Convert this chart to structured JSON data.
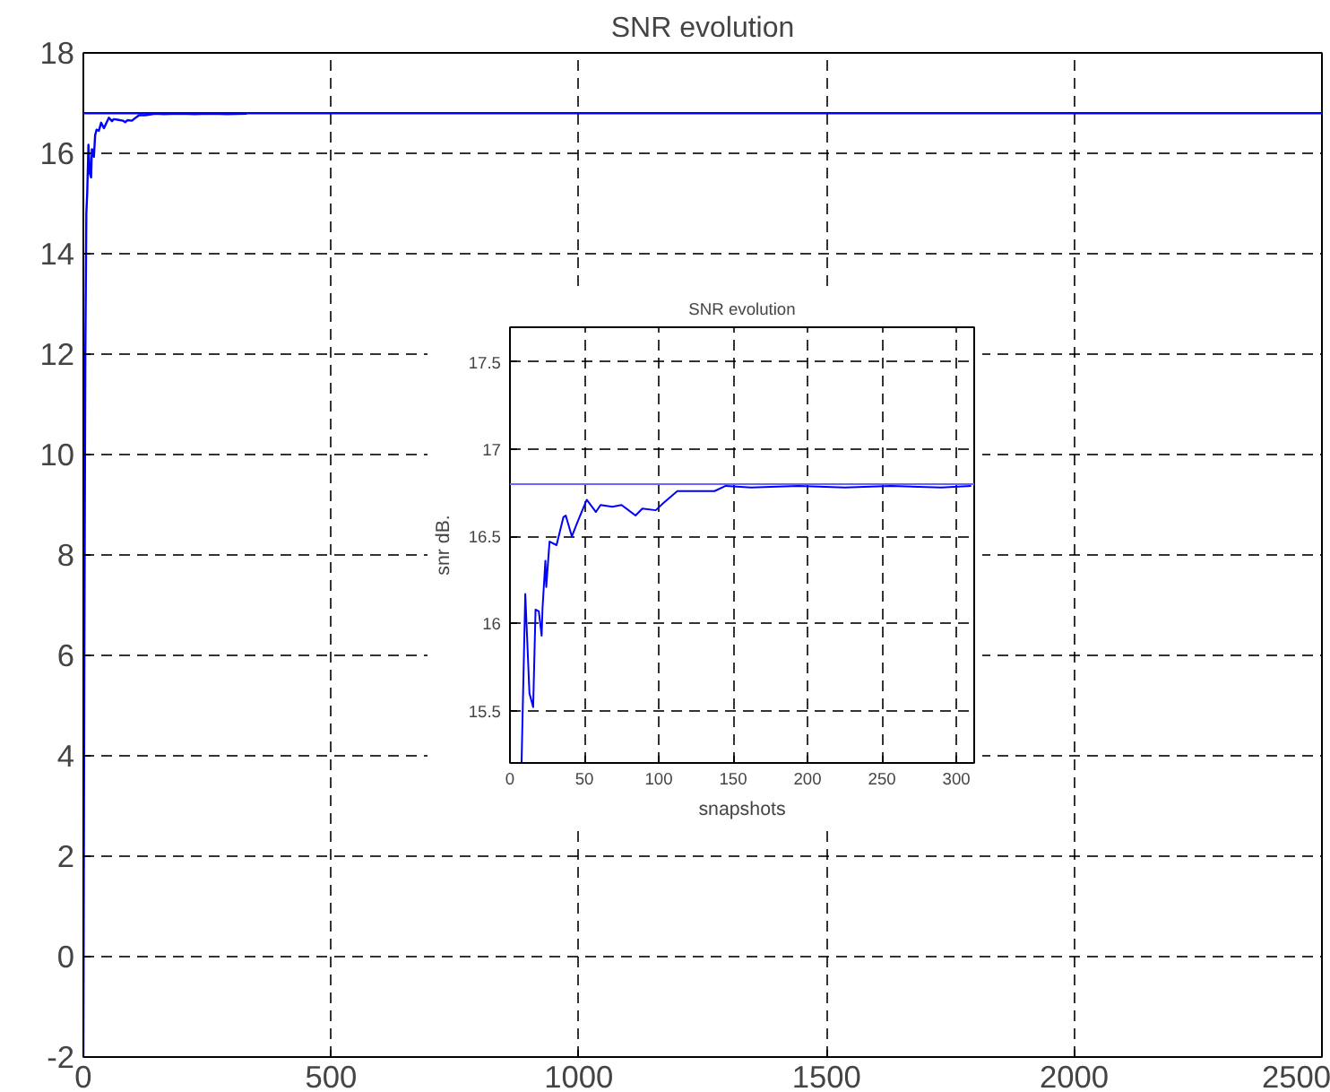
{
  "chart_data": [
    {
      "type": "line",
      "title": "SNR evolution",
      "xlim": [
        0,
        2500
      ],
      "ylim": [
        -2,
        18
      ],
      "xticks": [
        0,
        500,
        1000,
        1500,
        2000,
        2500
      ],
      "yticks": [
        -2,
        0,
        2,
        4,
        6,
        8,
        10,
        12,
        14,
        16,
        18
      ],
      "grid": true,
      "line_style": "solid",
      "series": [
        {
          "color": "#0000ff",
          "x": [
            0,
            2,
            4,
            6,
            7.8,
            10.3,
            13.1,
            15.6,
            17.2,
            19.4,
            21.3,
            23.8,
            26.6,
            31.3,
            35.9,
            41.6,
            45.3,
            51.6,
            57.8,
            60.9,
            68.8,
            79.7,
            84.4,
            89,
            98,
            103,
            112.5,
            125,
            145,
            162,
            194,
            225,
            256,
            290,
            330
          ],
          "values": [
            -2,
            6,
            12,
            14.8,
            15.2,
            16.17,
            15.6,
            15.52,
            16.08,
            16.07,
            15.93,
            16.36,
            16.47,
            16.45,
            16.61,
            16.5,
            16.58,
            16.71,
            16.64,
            16.68,
            16.67,
            16.65,
            16.62,
            16.66,
            16.65,
            16.69,
            16.76,
            16.76,
            16.79,
            16.78,
            16.79,
            16.78,
            16.79,
            16.78,
            16.79
          ]
        }
      ],
      "ref_lines": [
        {
          "axis": "y",
          "value": 16.8,
          "color": "#0000ff"
        }
      ]
    },
    {
      "type": "line",
      "title": "SNR evolution",
      "xlabel": "snapshots",
      "ylabel": "snr dB.",
      "xlim": [
        0,
        312
      ],
      "ylim": [
        15.2,
        17.7
      ],
      "xticks": [
        0,
        50,
        100,
        150,
        200,
        250,
        300
      ],
      "yticks": [
        15.5,
        16,
        16.5,
        17,
        17.5
      ],
      "grid": true,
      "line_style": "solid",
      "series": [
        {
          "color": "#0000ff",
          "x": [
            7.8,
            10.3,
            13.1,
            15.6,
            17.2,
            19.4,
            21.3,
            21.9,
            23.8,
            24.4,
            26.6,
            31.3,
            35.9,
            37.5,
            41.6,
            45.3,
            51.6,
            57.8,
            60.9,
            68.8,
            75,
            79.7,
            84.4,
            89,
            98,
            103,
            112.5,
            125,
            137.5,
            145,
            162,
            194,
            225,
            256,
            290,
            310
          ],
          "values": [
            15.2,
            16.17,
            15.6,
            15.52,
            16.08,
            16.07,
            15.93,
            16.09,
            16.36,
            16.21,
            16.47,
            16.45,
            16.61,
            16.62,
            16.5,
            16.58,
            16.71,
            16.64,
            16.68,
            16.67,
            16.68,
            16.65,
            16.62,
            16.66,
            16.65,
            16.69,
            16.76,
            16.76,
            16.76,
            16.79,
            16.78,
            16.79,
            16.78,
            16.79,
            16.78,
            16.79
          ]
        }
      ],
      "ref_lines": [
        {
          "axis": "y",
          "value": 16.8,
          "color": "#6666ff"
        }
      ]
    }
  ]
}
